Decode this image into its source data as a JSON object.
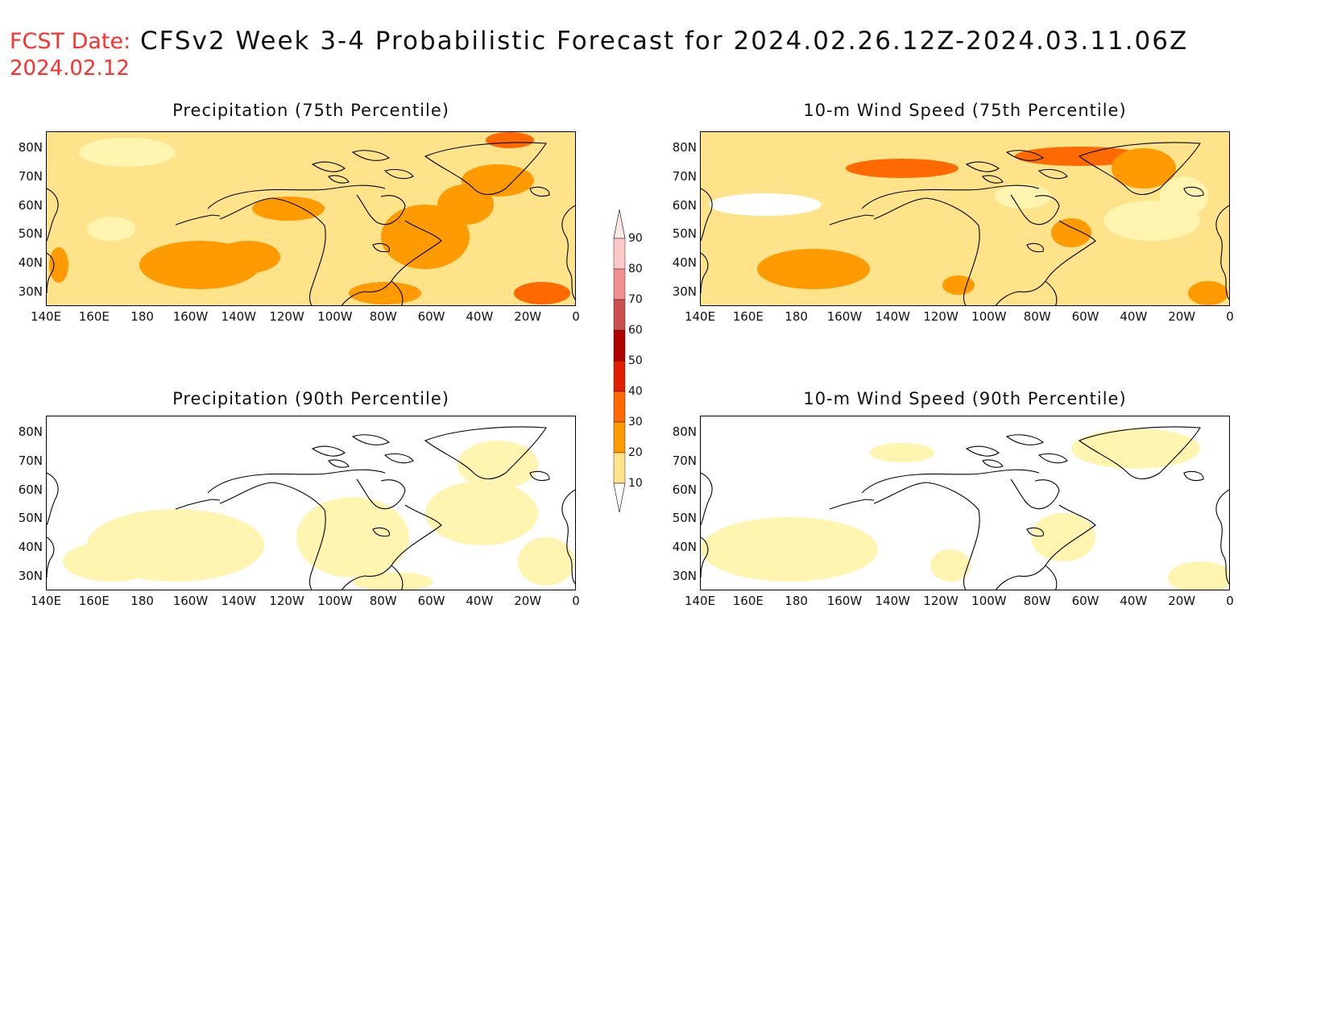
{
  "header": {
    "label": "FCST Date:",
    "title": "CFSv2 Week 3-4 Probabilistic Forecast for 2024.02.26.12Z-2024.03.11.06Z",
    "date": "2024.02.12"
  },
  "panels": [
    {
      "id": "precip75",
      "title": "Precipitation (75th Percentile)",
      "intensity": "high"
    },
    {
      "id": "wind75",
      "title": "10-m Wind Speed (75th Percentile)",
      "intensity": "high"
    },
    {
      "id": "precip90",
      "title": "Precipitation (90th Percentile)",
      "intensity": "low"
    },
    {
      "id": "wind90",
      "title": "10-m Wind Speed (90th Percentile)",
      "intensity": "low"
    }
  ],
  "lat_labels": [
    "80N",
    "70N",
    "60N",
    "50N",
    "40N",
    "30N"
  ],
  "lon_labels": [
    "140E",
    "160E",
    "180",
    "160W",
    "140W",
    "120W",
    "100W",
    "80W",
    "60W",
    "40W",
    "20W",
    "0"
  ],
  "colorbar": {
    "levels": [
      "10",
      "20",
      "30",
      "40",
      "50",
      "60",
      "70",
      "80",
      "90"
    ],
    "colors": [
      "#fff5b0",
      "#ffe38a",
      "#ff9a00",
      "#ff6a00",
      "#e02000",
      "#b00000",
      "#cc5050",
      "#f09090",
      "#fbc8c8"
    ]
  }
}
